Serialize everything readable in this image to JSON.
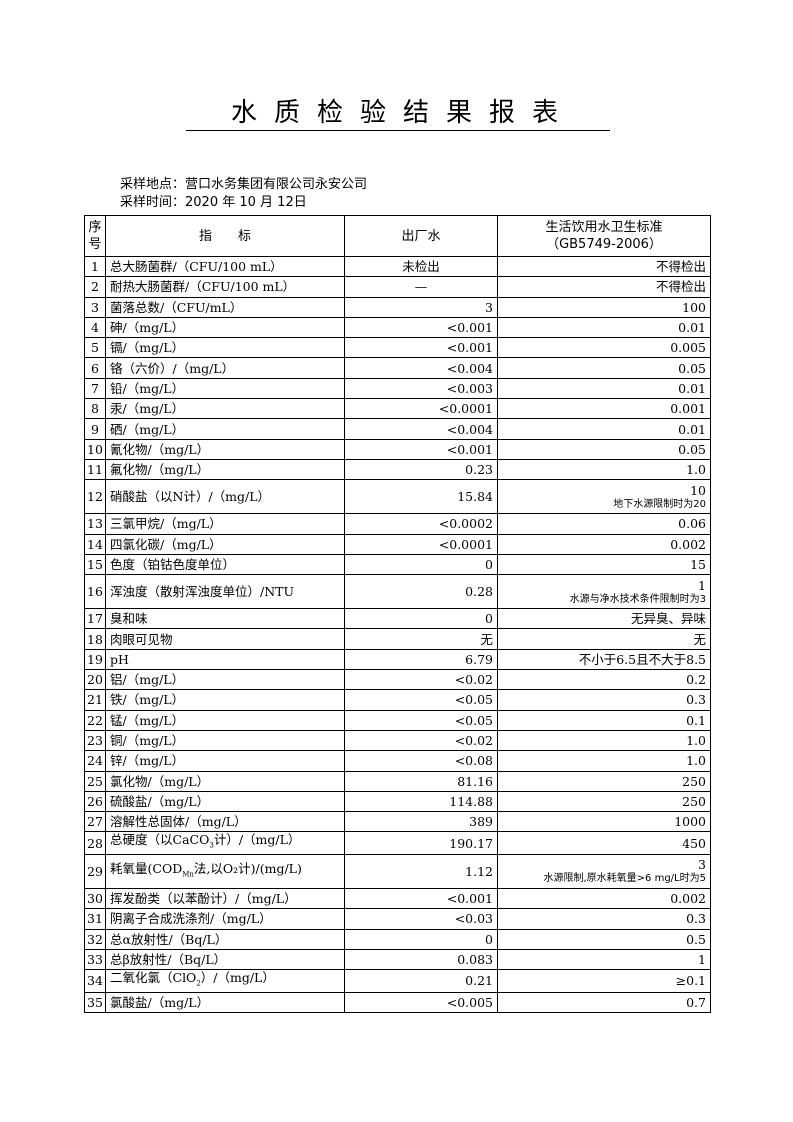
{
  "title": "水质检验结果报表",
  "location_label": "采样地点：",
  "location": "营口水务集团有限公司永安公司",
  "time_label": "采样时间：",
  "time": "2020 年 10 月 12日",
  "headers": {
    "no": "序号",
    "indicator": "指　　标",
    "output": "出厂水",
    "standard": "生活饮用水卫生标准",
    "standard_code": "（GB5749-2006）"
  },
  "rows": [
    {
      "no": "1",
      "name": "总大肠菌群/（CFU/100 mL）",
      "value": "未检出",
      "std": "不得检出",
      "center": true
    },
    {
      "no": "2",
      "name": "耐热大肠菌群/（CFU/100 mL）",
      "value": "—",
      "std": "不得检出",
      "center": true
    },
    {
      "no": "3",
      "name": "菌落总数/（CFU/mL）",
      "value": "3",
      "std": "100"
    },
    {
      "no": "4",
      "name": "砷/（mg/L）",
      "value": "<0.001",
      "std": "0.01"
    },
    {
      "no": "5",
      "name": "镉/（mg/L）",
      "value": "<0.001",
      "std": "0.005"
    },
    {
      "no": "6",
      "name": "铬（六价）/（mg/L）",
      "value": "<0.004",
      "std": "0.05"
    },
    {
      "no": "7",
      "name": "铅/（mg/L）",
      "value": "<0.003",
      "std": "0.01"
    },
    {
      "no": "8",
      "name": "汞/（mg/L）",
      "value": "<0.0001",
      "std": "0.001"
    },
    {
      "no": "9",
      "name": "硒/（mg/L）",
      "value": "<0.004",
      "std": "0.01"
    },
    {
      "no": "10",
      "name": "氰化物/（mg/L）",
      "value": "<0.001",
      "std": "0.05"
    },
    {
      "no": "11",
      "name": "氟化物/（mg/L）",
      "value": "0.23",
      "std": "1.0"
    },
    {
      "no": "12",
      "name": "硝酸盐（以N计）/（mg/L）",
      "value": "15.84",
      "std": "10",
      "note": "地下水源限制时为20"
    },
    {
      "no": "13",
      "name": "三氯甲烷/（mg/L）",
      "value": "<0.0002",
      "std": "0.06"
    },
    {
      "no": "14",
      "name": "四氯化碳/（mg/L）",
      "value": "<0.0001",
      "std": "0.002"
    },
    {
      "no": "15",
      "name": "色度（铂钴色度单位）",
      "value": "0",
      "std": "15"
    },
    {
      "no": "16",
      "name": "浑浊度（散射浑浊度单位）/NTU",
      "value": "0.28",
      "std": "1",
      "note": "水源与净水技术条件限制时为3"
    },
    {
      "no": "17",
      "name": "臭和味",
      "value": "0",
      "std": "无异臭、异味"
    },
    {
      "no": "18",
      "name": "肉眼可见物",
      "value": "无",
      "std": "无"
    },
    {
      "no": "19",
      "name": "pH",
      "value": "6.79",
      "std": "不小于6.5且不大于8.5"
    },
    {
      "no": "20",
      "name": "铝/（mg/L）",
      "value": "<0.02",
      "std": "0.2"
    },
    {
      "no": "21",
      "name": "铁/（mg/L）",
      "value": "<0.05",
      "std": "0.3"
    },
    {
      "no": "22",
      "name": "锰/（mg/L）",
      "value": "<0.05",
      "std": "0.1"
    },
    {
      "no": "23",
      "name": "铜/（mg/L）",
      "value": "<0.02",
      "std": "1.0"
    },
    {
      "no": "24",
      "name": "锌/（mg/L）",
      "value": "<0.08",
      "std": "1.0"
    },
    {
      "no": "25",
      "name": "氯化物/（mg/L）",
      "value": "81.16",
      "std": "250"
    },
    {
      "no": "26",
      "name": "硫酸盐/（mg/L）",
      "value": "114.88",
      "std": "250"
    },
    {
      "no": "27",
      "name": "溶解性总固体/（mg/L）",
      "value": "389",
      "std": "1000"
    },
    {
      "no": "28",
      "name": "总硬度（以CaCO",
      "sub": "3",
      "post": "计）/（mg/L）",
      "value": "190.17",
      "std": "450"
    },
    {
      "no": "29",
      "name": "耗氧量(COD",
      "sub": "Mn",
      "post": "法,以O₂计)/(mg/L)",
      "value": "1.12",
      "std": "3",
      "note": "水源限制,原水耗氧量>6 mg/L时为5"
    },
    {
      "no": "30",
      "name": "挥发酚类（以苯酚计）/（mg/L）",
      "value": "<0.001",
      "std": "0.002"
    },
    {
      "no": "31",
      "name": "阴离子合成洗涤剂/（mg/L）",
      "value": "<0.03",
      "std": "0.3"
    },
    {
      "no": "32",
      "name": "总α放射性/（Bq/L）",
      "value": "0",
      "std": "0.5"
    },
    {
      "no": "33",
      "name": "总β放射性/（Bq/L）",
      "value": "0.083",
      "std": "1"
    },
    {
      "no": "34",
      "name": "二氧化氯（ClO",
      "sub": "2",
      "post": "）/（mg/L）",
      "value": "0.21",
      "std": "≥0.1"
    },
    {
      "no": "35",
      "name": "氯酸盐/（mg/L）",
      "value": "<0.005",
      "std": "0.7"
    }
  ]
}
